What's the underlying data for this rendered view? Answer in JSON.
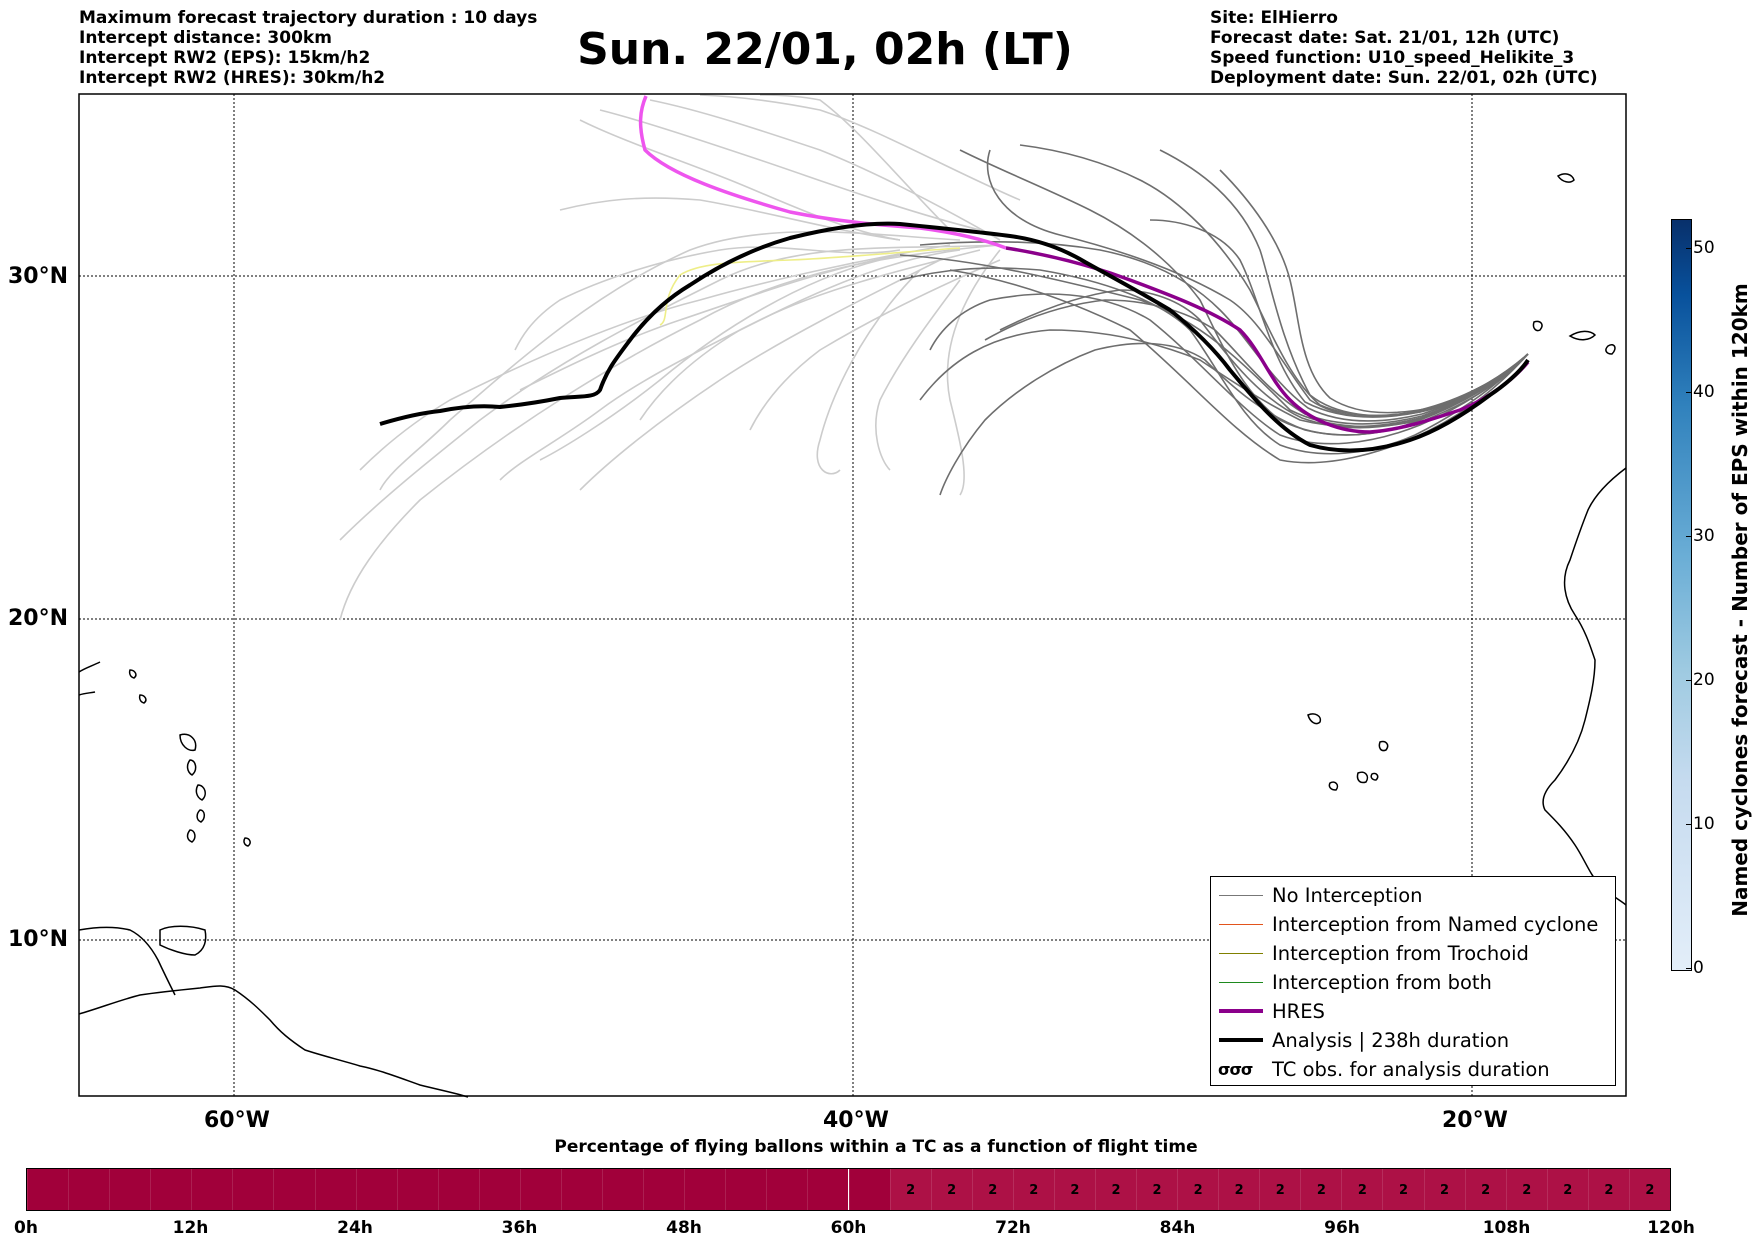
{
  "header": {
    "left_lines": [
      "Maximum forecast trajectory duration : 10 days",
      "Intercept distance: 300km",
      "Intercept RW2 (EPS):  15km/h2",
      "Intercept RW2 (HRES): 30km/h2"
    ],
    "right_lines": [
      "Site: ElHierro",
      "Forecast date: Sat. 21/01, 12h (UTC)",
      "Speed function: U10_speed_Helikite_3",
      "Deployment date: Sun. 22/01, 02h (UTC)"
    ],
    "title": "Sun. 22/01, 02h (LT)"
  },
  "map": {
    "lat_labels": [
      "30°N",
      "20°N",
      "10°N"
    ],
    "lon_labels": [
      "60°W",
      "40°W",
      "20°W"
    ],
    "colors": {
      "eps_no_interception": "#6e6e6e",
      "eps_background": "#cccccc",
      "hres": "#8b008b",
      "hres_early": "#ee55ee",
      "analysis": "#000000",
      "trochoid_faint": "#eeee88"
    }
  },
  "legend": {
    "items": [
      {
        "label": "No Interception",
        "color": "#777777",
        "width": 1
      },
      {
        "label": "Interception from Named cyclone",
        "color": "#e2541c",
        "width": 1
      },
      {
        "label": "Interception from Trochoid",
        "color": "#808000",
        "width": 1
      },
      {
        "label": "Interception from both",
        "color": "#1e8a1e",
        "width": 1
      },
      {
        "label": "HRES",
        "color": "#8b008b",
        "width": 4
      },
      {
        "label": "Analysis | 238h duration",
        "color": "#000000",
        "width": 4
      }
    ],
    "tc_symbol": "σσσ",
    "tc_label": "TC obs. for analysis duration"
  },
  "colorbar": {
    "label": "Named cyclones forecast - Number of EPS within 120km",
    "ticks": [
      "0",
      "10",
      "20",
      "30",
      "40",
      "50"
    ],
    "max": 52
  },
  "percentage_bar": {
    "title": "Percentage of flying ballons within a TC as a function of flight time",
    "time_labels": [
      "0h",
      "12h",
      "24h",
      "36h",
      "48h",
      "60h",
      "72h",
      "84h",
      "96h",
      "108h",
      "120h"
    ],
    "cells": [
      0,
      0,
      0,
      0,
      0,
      0,
      0,
      0,
      0,
      0,
      0,
      0,
      0,
      0,
      0,
      0,
      0,
      0,
      0,
      0,
      0,
      2,
      2,
      2,
      2,
      2,
      2,
      2,
      2,
      2,
      2,
      2,
      2,
      2,
      2,
      2,
      2,
      2,
      2,
      2
    ],
    "base_color": "#a1003a",
    "active_color": "#ad1146",
    "value_text": "2"
  }
}
